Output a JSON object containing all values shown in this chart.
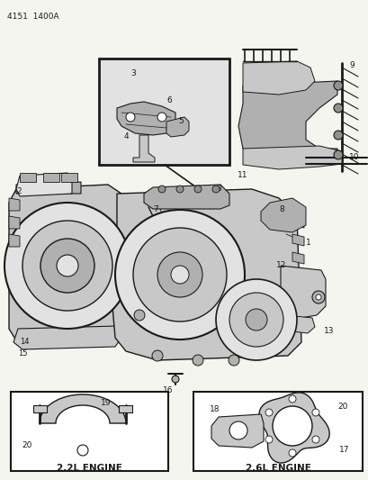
{
  "title": "4151  1400A",
  "bg_color": "#f5f5f0",
  "line_color": "#1a1a1a",
  "fig_width": 4.1,
  "fig_height": 5.33,
  "dpi": 100,
  "labels": {
    "engine_22": "2.2L ENGINE",
    "engine_26": "2.6L ENGINE"
  },
  "gray_fill": "#c8c8c8",
  "light_gray": "#e2e2e2",
  "dark_gray": "#909090",
  "mid_gray": "#b0b0b0"
}
